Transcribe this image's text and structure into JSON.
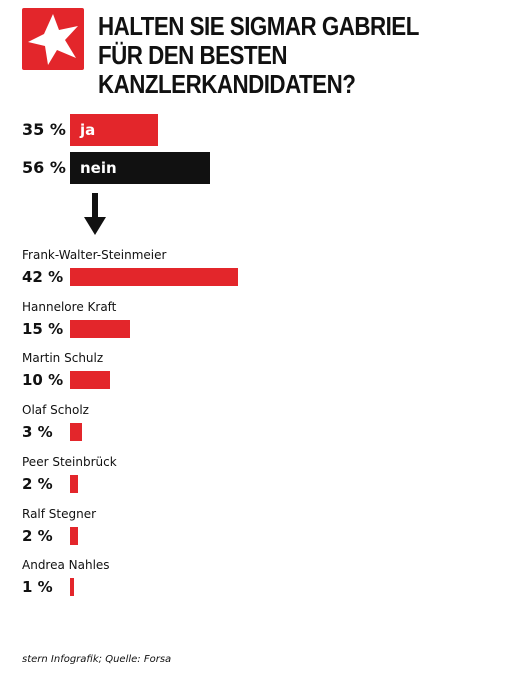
{
  "title": "HALTEN SIE SIGMAR GABRIEL FÜR DEN BESTEN KANZLERKANDIDATEN?",
  "source": "stern Infografik; Quelle: Forsa",
  "colors": {
    "red": "#e3262b",
    "black": "#111111"
  },
  "chart_data": [
    {
      "type": "bar",
      "orientation": "horizontal",
      "categories": [
        "ja",
        "nein"
      ],
      "values": [
        35,
        56
      ],
      "value_labels": [
        "35 %",
        "56 %"
      ],
      "bar_colors": [
        "#e3262b",
        "#111111"
      ],
      "unit": "%"
    },
    {
      "type": "bar",
      "orientation": "horizontal",
      "categories": [
        "Frank-Walter-Steinmeier",
        "Hannelore Kraft",
        "Martin Schulz",
        "Olaf Scholz",
        "Peer Steinbrück",
        "Ralf Stegner",
        "Andrea Nahles"
      ],
      "values": [
        42,
        15,
        10,
        3,
        2,
        2,
        1
      ],
      "value_labels": [
        "42 %",
        "15 %",
        "10 %",
        "3 %",
        "2 %",
        "2 %",
        "1 %"
      ],
      "bar_color": "#e3262b",
      "unit": "%"
    }
  ]
}
